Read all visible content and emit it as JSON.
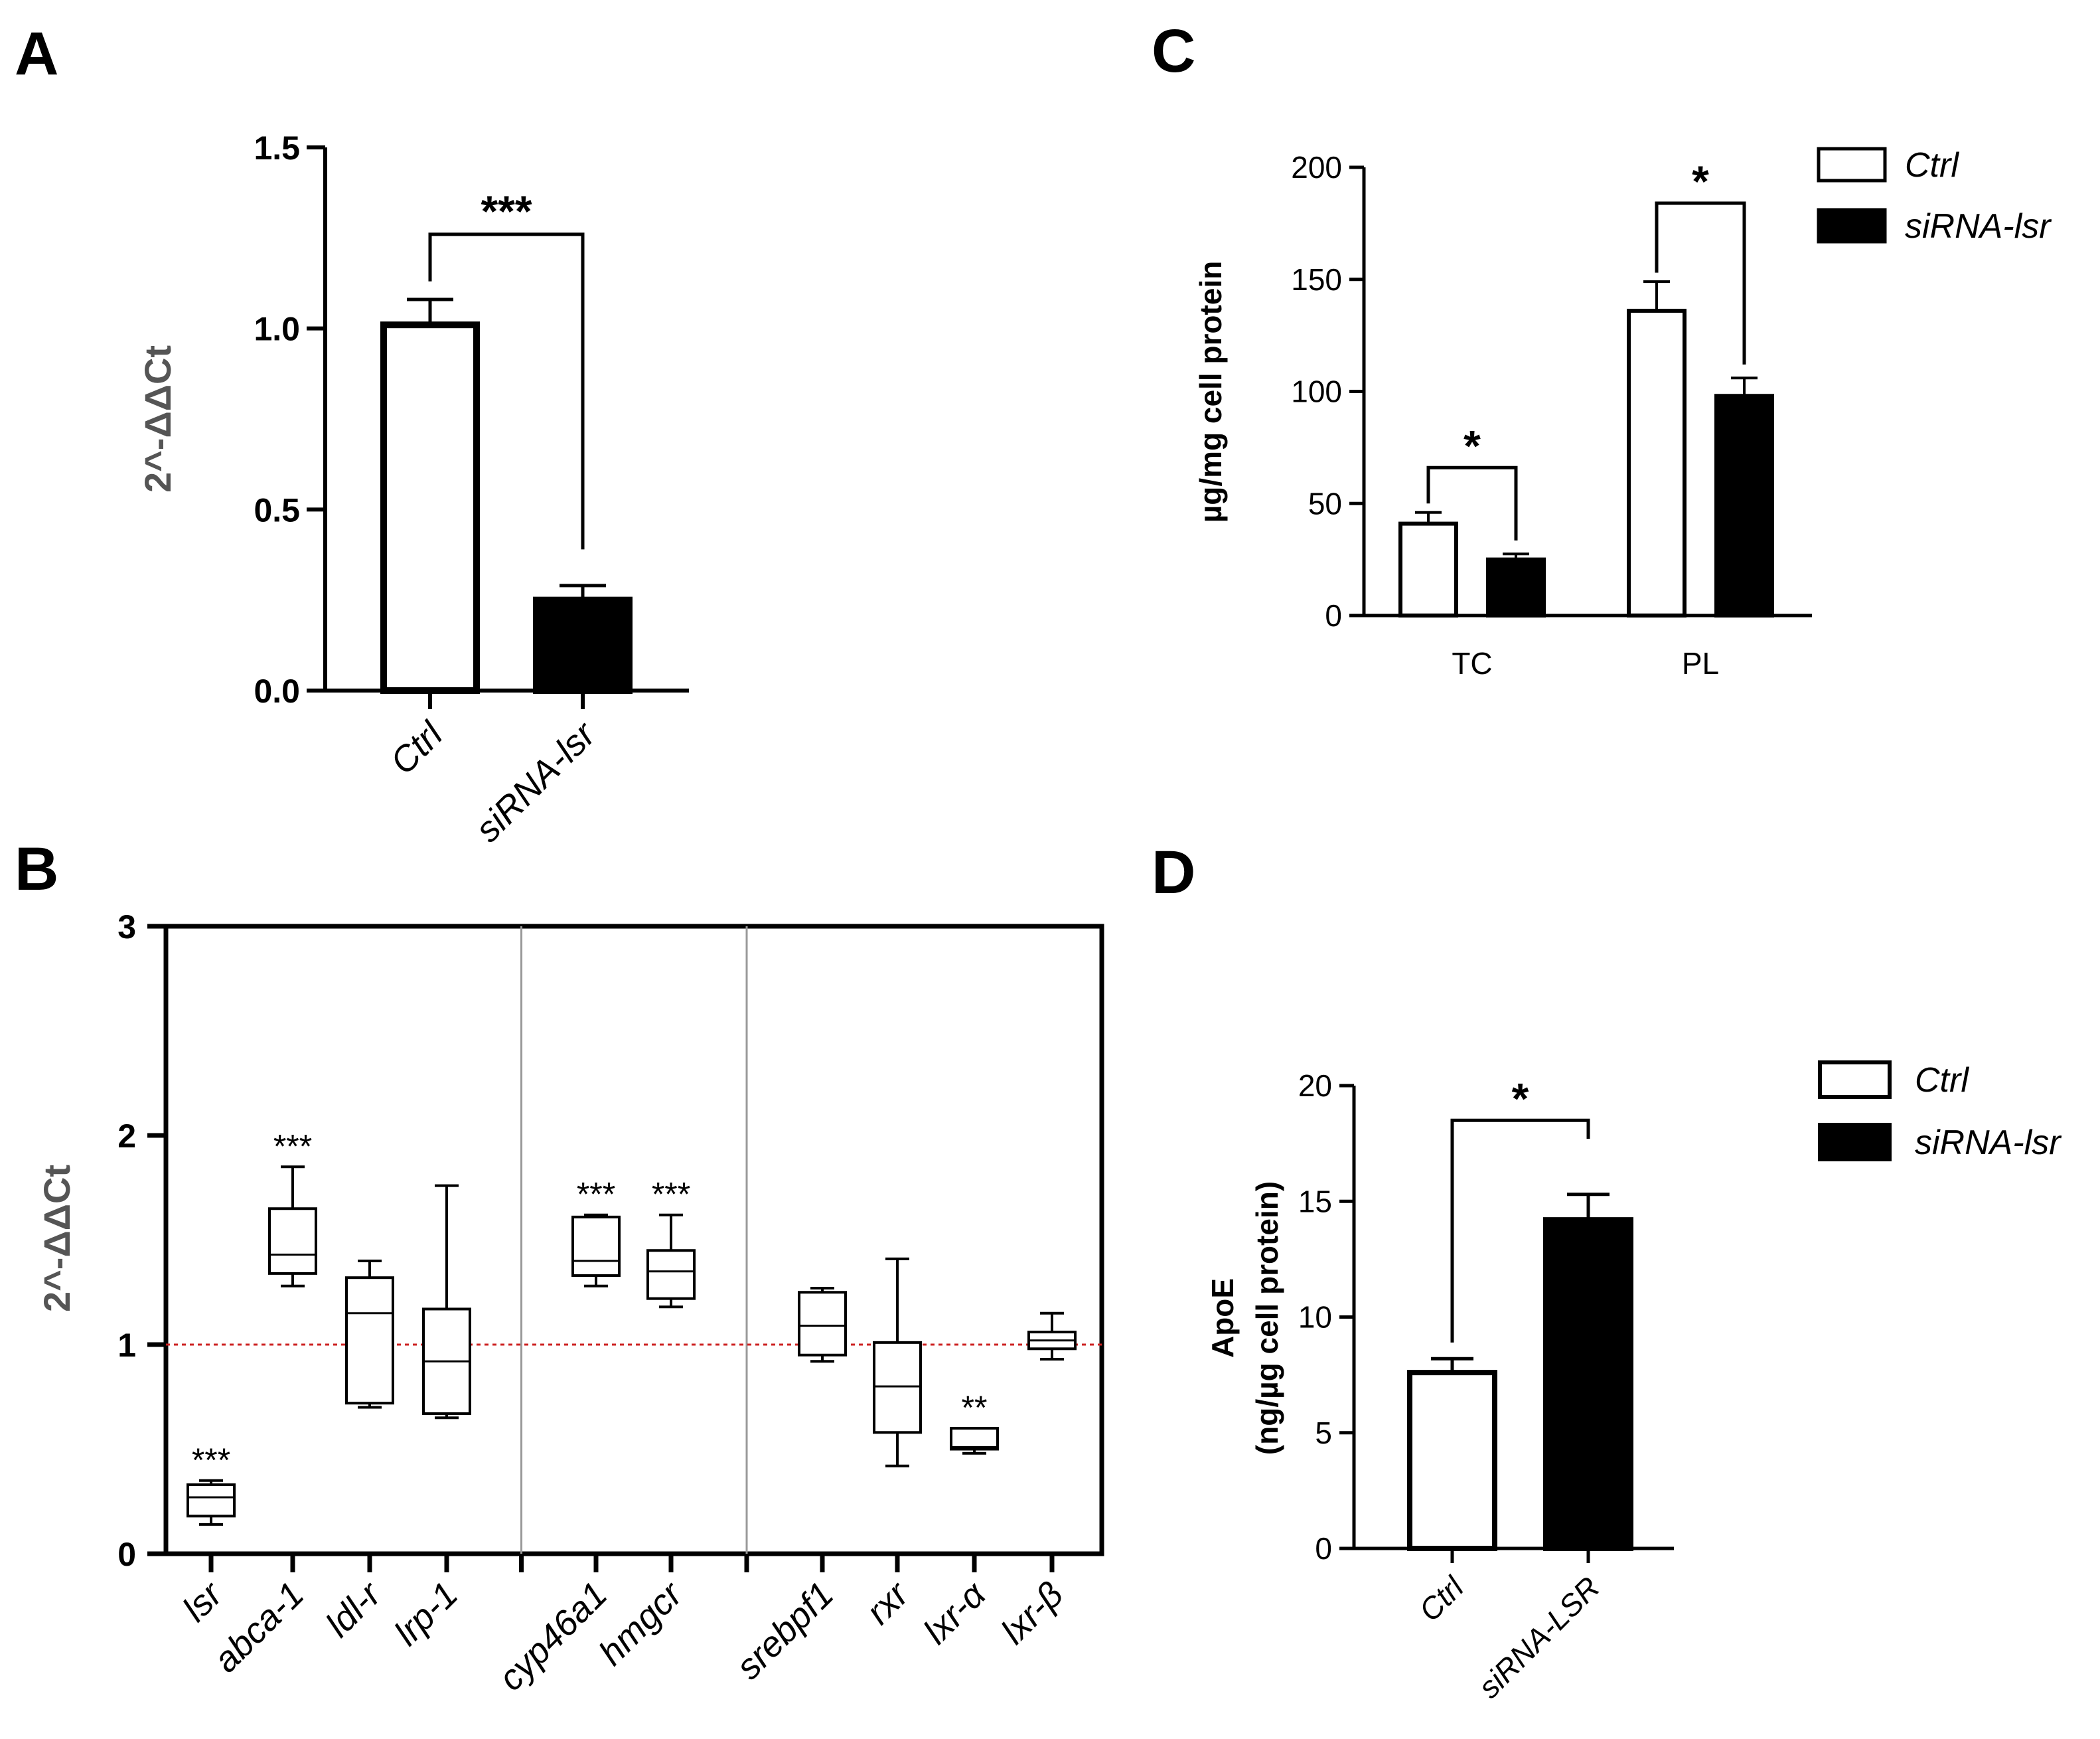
{
  "panels": {
    "A": {
      "letter": "A",
      "chart_data": {
        "type": "bar",
        "title": "",
        "ylabel": "2^-ΔΔCt",
        "xlabel": "",
        "ylim": [
          0,
          1.5
        ],
        "yticks": [
          "0.0",
          "0.5",
          "1.0",
          "1.5"
        ],
        "categories": [
          "Ctrl",
          "siRNA-lsr"
        ],
        "values": [
          1.01,
          0.25
        ],
        "errors": [
          0.07,
          0.04
        ],
        "fills": [
          "#ffffff",
          "#000000"
        ],
        "significance": [
          {
            "pair": [
              0,
              1
            ],
            "label": "***"
          }
        ]
      }
    },
    "B": {
      "letter": "B",
      "chart_data": {
        "type": "box",
        "title": "",
        "ylabel": "2^-ΔΔCt",
        "ylim": [
          0,
          3
        ],
        "yticks": [
          "0",
          "1",
          "2",
          "3"
        ],
        "reference_line": 1,
        "groups": [
          {
            "name": "lsr",
            "min": 0.14,
            "q1": 0.18,
            "median": 0.27,
            "q3": 0.33,
            "max": 0.35,
            "sig": "***"
          },
          {
            "name": "abca-1",
            "min": 1.28,
            "q1": 1.34,
            "median": 1.43,
            "q3": 1.65,
            "max": 1.85,
            "sig": "***"
          },
          {
            "name": "ldl-r",
            "min": 0.7,
            "q1": 0.72,
            "median": 1.15,
            "q3": 1.32,
            "max": 1.4,
            "sig": ""
          },
          {
            "name": "lrp-1",
            "min": 0.65,
            "q1": 0.67,
            "median": 0.92,
            "q3": 1.17,
            "max": 1.76,
            "sig": ""
          },
          {
            "name": "cyp46a1",
            "min": 1.28,
            "q1": 1.33,
            "median": 1.4,
            "q3": 1.61,
            "max": 1.62,
            "sig": "***"
          },
          {
            "name": "hmgcr",
            "min": 1.18,
            "q1": 1.22,
            "median": 1.35,
            "q3": 1.45,
            "max": 1.62,
            "sig": "***"
          },
          {
            "name": "srebpf1",
            "min": 0.92,
            "q1": 0.95,
            "median": 1.09,
            "q3": 1.25,
            "max": 1.27,
            "sig": ""
          },
          {
            "name": "rxr",
            "min": 0.42,
            "q1": 0.58,
            "median": 0.8,
            "q3": 1.01,
            "max": 1.41,
            "sig": ""
          },
          {
            "name": "lxr-α",
            "min": 0.48,
            "q1": 0.5,
            "median": 0.51,
            "q3": 0.6,
            "max": 0.6,
            "sig": "**"
          },
          {
            "name": "lxr-β",
            "min": 0.93,
            "q1": 0.98,
            "median": 1.02,
            "q3": 1.06,
            "max": 1.15,
            "sig": ""
          }
        ],
        "separators_after": [
          3,
          5
        ]
      }
    },
    "C": {
      "letter": "C",
      "chart_data": {
        "type": "bar",
        "title": "",
        "ylabel": "µg/mg cell protein",
        "ylim": [
          0,
          200
        ],
        "yticks": [
          "0",
          "50",
          "100",
          "150",
          "200"
        ],
        "categories": [
          "TC",
          "PL"
        ],
        "series": [
          {
            "name": "Ctrl",
            "values": [
              41,
              136
            ],
            "errors": [
              5,
              13
            ],
            "fill": "#ffffff"
          },
          {
            "name": "siRNA-lsr",
            "values": [
              25,
              98
            ],
            "errors": [
              2.5,
              8
            ],
            "fill": "#000000"
          }
        ],
        "significance": [
          {
            "category": "TC",
            "label": "*"
          },
          {
            "category": "PL",
            "label": "*"
          }
        ],
        "legend": [
          "Ctrl",
          "siRNA-lsr"
        ]
      }
    },
    "D": {
      "letter": "D",
      "chart_data": {
        "type": "bar",
        "title": "",
        "ylabel_line1": "ApoE",
        "ylabel_line2": "(ng/µg cell protein)",
        "ylim": [
          0,
          20
        ],
        "yticks": [
          "0",
          "5",
          "10",
          "15",
          "20"
        ],
        "categories": [
          "Ctrl",
          "siRNA-LSR"
        ],
        "values": [
          7.6,
          14.2
        ],
        "errors": [
          0.6,
          1.1
        ],
        "fills": [
          "#ffffff",
          "#000000"
        ],
        "significance": [
          {
            "pair": [
              0,
              1
            ],
            "label": "*"
          }
        ],
        "legend": [
          "Ctrl",
          "siRNA-lsr"
        ]
      }
    }
  }
}
